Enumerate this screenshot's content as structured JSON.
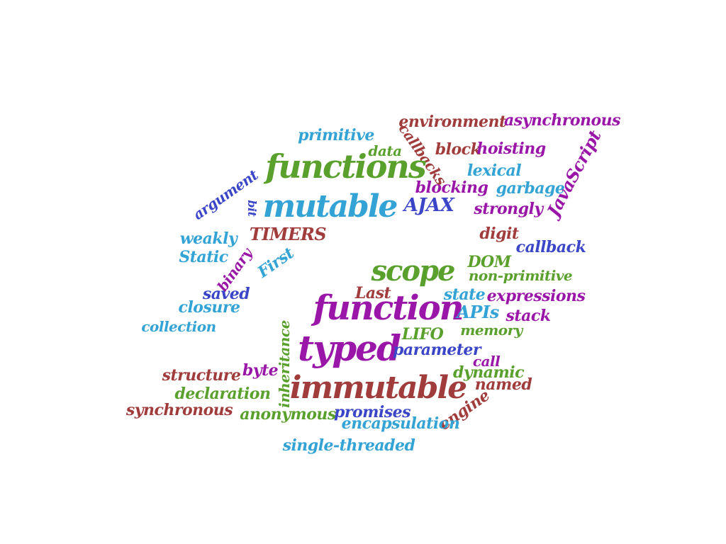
{
  "colors": {
    "green": "#5aa02c",
    "blue": "#33a3d6",
    "purple": "#9a16a8",
    "maroon": "#a03c3c",
    "indigo": "#3b45c8"
  },
  "cloud": {
    "words": [
      {
        "text": "environment",
        "color": "maroon"
      },
      {
        "text": "asynchronous",
        "color": "purple"
      },
      {
        "text": "primitive",
        "color": "blue"
      },
      {
        "text": "callbacks",
        "color": "maroon"
      },
      {
        "text": "data",
        "color": "green"
      },
      {
        "text": "block",
        "color": "maroon"
      },
      {
        "text": "hoisting",
        "color": "purple"
      },
      {
        "text": "JavaScript",
        "color": "purple"
      },
      {
        "text": "functions",
        "color": "green"
      },
      {
        "text": "lexical",
        "color": "blue"
      },
      {
        "text": "argument",
        "color": "indigo"
      },
      {
        "text": "blocking",
        "color": "purple"
      },
      {
        "text": "garbage",
        "color": "blue"
      },
      {
        "text": "bit",
        "color": "indigo"
      },
      {
        "text": "mutable",
        "color": "blue"
      },
      {
        "text": "AJAX",
        "color": "indigo"
      },
      {
        "text": "strongly",
        "color": "purple"
      },
      {
        "text": "TIMERS",
        "color": "maroon"
      },
      {
        "text": "weakly",
        "color": "blue"
      },
      {
        "text": "digit",
        "color": "maroon"
      },
      {
        "text": "callback",
        "color": "indigo"
      },
      {
        "text": "Static",
        "color": "blue"
      },
      {
        "text": "binary",
        "color": "purple"
      },
      {
        "text": "First",
        "color": "blue"
      },
      {
        "text": "scope",
        "color": "green"
      },
      {
        "text": "DOM",
        "color": "green"
      },
      {
        "text": "non-primitive",
        "color": "green"
      },
      {
        "text": "saved",
        "color": "indigo"
      },
      {
        "text": "Last",
        "color": "maroon"
      },
      {
        "text": "state",
        "color": "blue"
      },
      {
        "text": "expressions",
        "color": "purple"
      },
      {
        "text": "closure",
        "color": "blue"
      },
      {
        "text": "function",
        "color": "purple"
      },
      {
        "text": "APIs",
        "color": "blue"
      },
      {
        "text": "stack",
        "color": "purple"
      },
      {
        "text": "collection",
        "color": "blue"
      },
      {
        "text": "inheritance",
        "color": "green"
      },
      {
        "text": "LIFO",
        "color": "green"
      },
      {
        "text": "memory",
        "color": "green"
      },
      {
        "text": "typed",
        "color": "purple"
      },
      {
        "text": "parameter",
        "color": "indigo"
      },
      {
        "text": "call",
        "color": "purple"
      },
      {
        "text": "structure",
        "color": "maroon"
      },
      {
        "text": "byte",
        "color": "purple"
      },
      {
        "text": "dynamic",
        "color": "green"
      },
      {
        "text": "immutable",
        "color": "maroon"
      },
      {
        "text": "named",
        "color": "maroon"
      },
      {
        "text": "declaration",
        "color": "green"
      },
      {
        "text": "synchronous",
        "color": "maroon"
      },
      {
        "text": "anonymous",
        "color": "green"
      },
      {
        "text": "promises",
        "color": "indigo"
      },
      {
        "text": "engine",
        "color": "maroon"
      },
      {
        "text": "encapsulation",
        "color": "blue"
      },
      {
        "text": "single-threaded",
        "color": "blue"
      }
    ]
  }
}
